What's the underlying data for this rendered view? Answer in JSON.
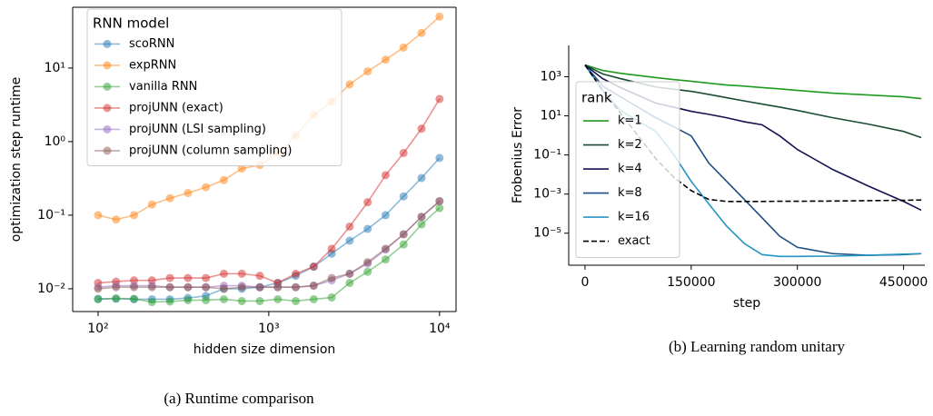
{
  "chart_data": [
    {
      "type": "line",
      "caption": "(a) Runtime comparison",
      "xlabel": "hidden size dimension",
      "ylabel": "optimization step runtime",
      "xscale": "log",
      "yscale": "log",
      "box": true,
      "markers": true,
      "alpha": 0.5,
      "legend_title": "RNN model",
      "legend": "upper left",
      "xlim": [
        71,
        12500
      ],
      "ylim": [
        0.0049,
        67
      ],
      "xticks": [
        {
          "value": 100,
          "label": "10²"
        },
        {
          "value": 1000,
          "label": "10³"
        },
        {
          "value": 10000,
          "label": "10⁴"
        }
      ],
      "yticks": [
        {
          "value": 0.01,
          "label": "10⁻²"
        },
        {
          "value": 0.1,
          "label": "10⁻¹"
        },
        {
          "value": 1,
          "label": "10⁰"
        },
        {
          "value": 10,
          "label": "10¹"
        }
      ],
      "x": [
        100,
        127.4,
        162.4,
        206.9,
        263.7,
        336.0,
        428.1,
        545.6,
        695.2,
        885.9,
        1128.8,
        1438.4,
        1832.9,
        2335.7,
        2976.4,
        3792.7,
        4832.9,
        6158.5,
        7847.6,
        10000
      ],
      "series": [
        {
          "name": "scoRNN",
          "color": "#1f77b4",
          "values": [
            0.0073,
            0.0073,
            0.0072,
            0.0072,
            0.0072,
            0.0075,
            0.008,
            0.01,
            0.01,
            0.0105,
            0.012,
            0.015,
            0.02,
            0.03,
            0.045,
            0.065,
            0.1,
            0.18,
            0.32,
            0.6
          ]
        },
        {
          "name": "expRNN",
          "color": "#ff7f0e",
          "values": [
            0.1,
            0.087,
            0.1,
            0.14,
            0.17,
            0.2,
            0.24,
            0.3,
            0.43,
            0.48,
            0.7,
            1.2,
            2.3,
            3.5,
            6,
            9,
            13,
            19,
            30,
            50
          ]
        },
        {
          "name": "vanilla RNN",
          "color": "#2ca02c",
          "values": [
            0.0072,
            0.0074,
            0.0073,
            0.0066,
            0.0067,
            0.007,
            0.007,
            0.0072,
            0.0068,
            0.0068,
            0.0072,
            0.0068,
            0.0072,
            0.0076,
            0.012,
            0.017,
            0.025,
            0.04,
            0.075,
            0.125
          ]
        },
        {
          "name": "projUNN (exact)",
          "color": "#d62728",
          "values": [
            0.012,
            0.0125,
            0.013,
            0.013,
            0.014,
            0.014,
            0.014,
            0.016,
            0.016,
            0.015,
            0.012,
            0.016,
            0.02,
            0.035,
            0.07,
            0.15,
            0.35,
            0.7,
            1.5,
            3.8
          ]
        },
        {
          "name": "projUNN (LSI sampling)",
          "color": "#9467bd",
          "values": [
            0.0105,
            0.011,
            0.011,
            0.011,
            0.0105,
            0.0105,
            0.0105,
            0.011,
            0.011,
            0.0105,
            0.0105,
            0.0105,
            0.011,
            0.013,
            0.016,
            0.022,
            0.034,
            0.055,
            0.095,
            0.155
          ]
        },
        {
          "name": "projUNN (column sampling)",
          "color": "#8c564b",
          "values": [
            0.01,
            0.0105,
            0.0105,
            0.0105,
            0.0105,
            0.0105,
            0.0105,
            0.01,
            0.0105,
            0.0105,
            0.0105,
            0.0105,
            0.011,
            0.014,
            0.016,
            0.023,
            0.035,
            0.055,
            0.095,
            0.155
          ]
        }
      ]
    },
    {
      "type": "line",
      "caption": "(b) Learning random unitary",
      "xlabel": "step",
      "ylabel": "Frobenius Error",
      "xscale": "linear",
      "yscale": "log",
      "box": false,
      "markers": false,
      "alpha": 1,
      "legend_title": "rank",
      "legend": "center left",
      "xlim": [
        -23000,
        480000
      ],
      "ylim": [
        2.3e-07,
        40000
      ],
      "xticks": [
        0,
        150000,
        300000,
        450000
      ],
      "yticks": [
        {
          "value": 1000,
          "label": "10³"
        },
        {
          "value": 10,
          "label": "10¹"
        },
        {
          "value": 0.1,
          "label": "10⁻¹"
        },
        {
          "value": 0.001,
          "label": "10⁻³"
        },
        {
          "value": 1e-05,
          "label": "10⁻⁵"
        }
      ],
      "x": [
        0,
        25000,
        50000,
        100000,
        125000,
        150000,
        175000,
        200000,
        225000,
        250000,
        275000,
        300000,
        350000,
        400000,
        450000,
        475000
      ],
      "series": [
        {
          "name": "k=1",
          "color": "#1f9a1f",
          "values": [
            4000,
            2100,
            1500,
            900,
            720,
            590,
            470,
            380,
            330,
            280,
            240,
            200,
            145,
            117,
            94,
            76
          ]
        },
        {
          "name": "k=2",
          "color": "#1b4d33",
          "values": [
            4000,
            1400,
            800,
            300,
            230,
            180,
            125,
            85,
            58,
            40,
            28,
            19,
            8,
            3.8,
            1.6,
            0.77
          ]
        },
        {
          "name": "k=4",
          "color": "#14124f",
          "values": [
            4000,
            800,
            280,
            45,
            28,
            17,
            12,
            8,
            5,
            3.5,
            0.95,
            0.19,
            0.018,
            0.0026,
            0.00042,
            0.00015
          ]
        },
        {
          "name": "k=8",
          "color": "#1b4f82",
          "values": [
            4000,
            340,
            95,
            8,
            2.8,
            0.95,
            0.038,
            0.0045,
            0.00053,
            6.2e-05,
            7e-06,
            1.9e-06,
            9e-07,
            7.4e-07,
            8e-07,
            9e-07
          ]
        },
        {
          "name": "k=16",
          "color": "#2495c2",
          "values": [
            4000,
            200,
            19,
            1.6,
            0.11,
            0.0045,
            0.00031,
            2.3e-05,
            3e-06,
            8e-07,
            6.5e-07,
            6.5e-07,
            6.7e-07,
            7.4e-07,
            8.5e-07,
            9e-07
          ]
        },
        {
          "name": "exact",
          "color": "#000000",
          "dash": true,
          "values": [
            4000,
            200,
            14,
            0.065,
            0.0075,
            0.0015,
            0.00053,
            0.00042,
            0.00042,
            0.00042,
            0.00043,
            0.00043,
            0.00044,
            0.00046,
            0.00048,
            0.0005
          ]
        }
      ]
    }
  ]
}
